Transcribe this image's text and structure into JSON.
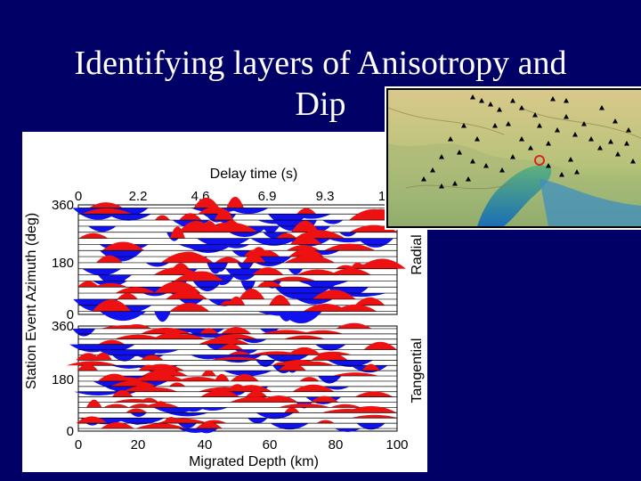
{
  "slide": {
    "title_line1": "Identifying layers of Anisotropy and",
    "title_line2": "Dip"
  },
  "figure": {
    "top_axis_label": "Delay time (s)",
    "top_ticks": [
      "0",
      "2.2",
      "4.6",
      "6.9",
      "9.3",
      "1"
    ],
    "bottom_axis_label": "Migrated Depth (km)",
    "bottom_ticks": [
      "0",
      "20",
      "40",
      "60",
      "80",
      "100"
    ],
    "y_axis_label": "Station Event Azimuth (deg)",
    "radial": {
      "label": "Radial",
      "y_ticks": [
        "360",
        "180",
        "0"
      ]
    },
    "tangential": {
      "label": "Tangential",
      "y_ticks": [
        "360",
        "180",
        "0"
      ]
    },
    "colors": {
      "positive": "#ee1111",
      "negative": "#1111ee"
    }
  },
  "map": {
    "description_icon": "terrain-map-icon",
    "station_marker": "triangle",
    "highlight_marker": "circle"
  }
}
